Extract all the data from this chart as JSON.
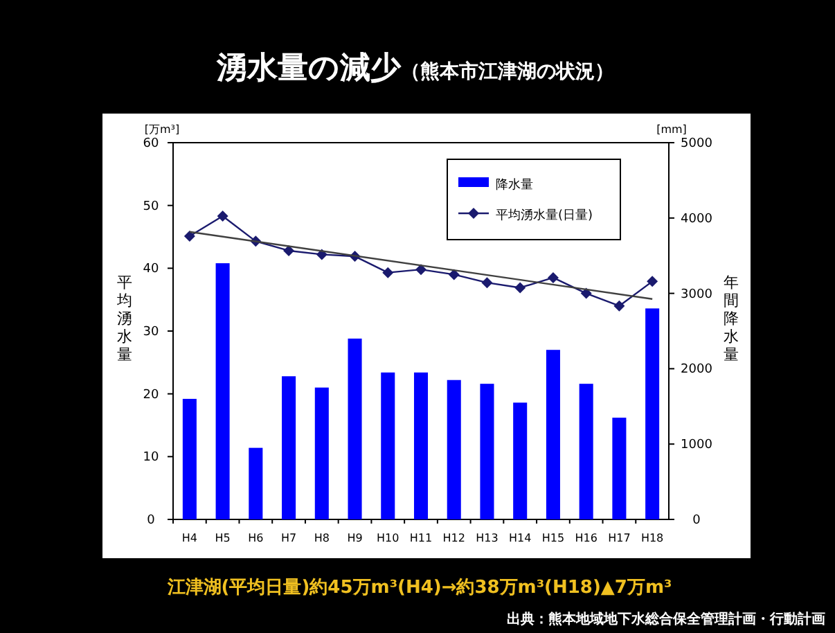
{
  "chart_data": {
    "type": "bar",
    "title": "湧水量の減少",
    "subtitle": "（熊本市江津湖の状況）",
    "ylabel": "平均湧水量",
    "y2label": "年間降水量",
    "categories": [
      "H4",
      "H5",
      "H6",
      "H7",
      "H8",
      "H9",
      "H10",
      "H11",
      "H12",
      "H13",
      "H14",
      "H15",
      "H16",
      "H17",
      "H18"
    ],
    "series": [
      {
        "name": "降水量",
        "axis": "y2",
        "color": "#0000ff",
        "values": [
          1600,
          3400,
          950,
          1900,
          1750,
          2400,
          1950,
          1950,
          1850,
          1800,
          1550,
          2250,
          1800,
          1350,
          2800
        ]
      },
      {
        "name": "平均湧水量(日量)",
        "type": "line",
        "axis": "y",
        "color": "#1a1a6e",
        "values": [
          45.1,
          48.3,
          44.3,
          42.8,
          42.2,
          41.9,
          39.3,
          39.8,
          39.0,
          37.7,
          36.9,
          38.5,
          36.0,
          34.0,
          37.9
        ]
      },
      {
        "type": "line",
        "axis": "y",
        "color": "#404040",
        "marker": "none",
        "x": [
          "H4",
          "H18"
        ],
        "values": [
          45.8,
          35.1
        ]
      }
    ],
    "ylim": [
      0,
      60
    ],
    "yticks": [
      0,
      10,
      20,
      30,
      40,
      50,
      60
    ],
    "y2lim": [
      0,
      5000
    ],
    "y2ticks": [
      0,
      1000,
      2000,
      3000,
      4000,
      5000
    ],
    "legend": "top right",
    "marker": "diamond",
    "line_style": "solid",
    "annotations": [
      "[万m³]",
      "[mm]",
      "江津湖(平均日量)約45万m³(H4)→約38万m³(H18)▲7万m³",
      "出典：熊本地域地下水総合保全管理計画・行動計画"
    ]
  }
}
